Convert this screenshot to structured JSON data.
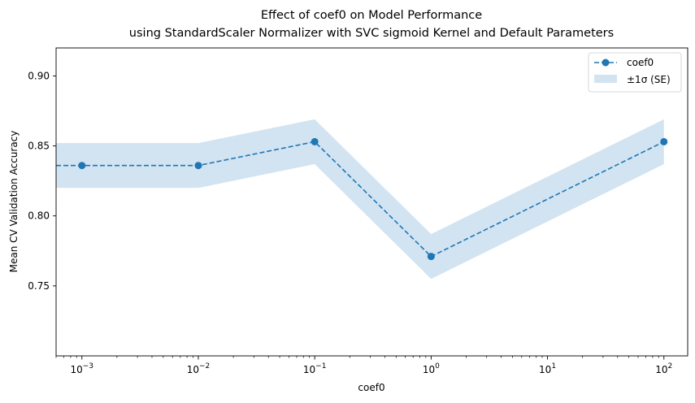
{
  "chart_data": {
    "type": "line",
    "title": "Effect of coef0 on Model Performance",
    "subtitle": "using StandardScaler Normalizer with SVC sigmoid Kernel and Default Parameters",
    "xlabel": "coef0",
    "ylabel": "Mean CV Validation Accuracy",
    "xscale": "log",
    "xlim": [
      0.0006,
      160
    ],
    "ylim": [
      0.7,
      0.92
    ],
    "yticks": [
      0.75,
      0.8,
      0.85,
      0.9
    ],
    "ytick_labels": [
      "0.75",
      "0.80",
      "0.85",
      "0.90"
    ],
    "xticks": [
      {
        "value": 0.001,
        "base": "10",
        "exp": "−3"
      },
      {
        "value": 0.01,
        "base": "10",
        "exp": "−2"
      },
      {
        "value": 0.1,
        "base": "10",
        "exp": "−1"
      },
      {
        "value": 1,
        "base": "10",
        "exp": "0"
      },
      {
        "value": 10,
        "base": "10",
        "exp": "1"
      },
      {
        "value": 100,
        "base": "10",
        "exp": "2"
      }
    ],
    "x": [
      0.001,
      0.01,
      0.1,
      1,
      100
    ],
    "series": [
      {
        "name": "coef0",
        "values": [
          0.836,
          0.836,
          0.853,
          0.771,
          0.853
        ],
        "lower": [
          0.82,
          0.82,
          0.837,
          0.755,
          0.837
        ],
        "upper": [
          0.852,
          0.852,
          0.869,
          0.787,
          0.869
        ]
      }
    ],
    "band_label": "±1σ (SE)",
    "legend": "top-right",
    "grid": false,
    "colors": {
      "line": "#1f77b4",
      "band": "#a6c8e4"
    }
  }
}
